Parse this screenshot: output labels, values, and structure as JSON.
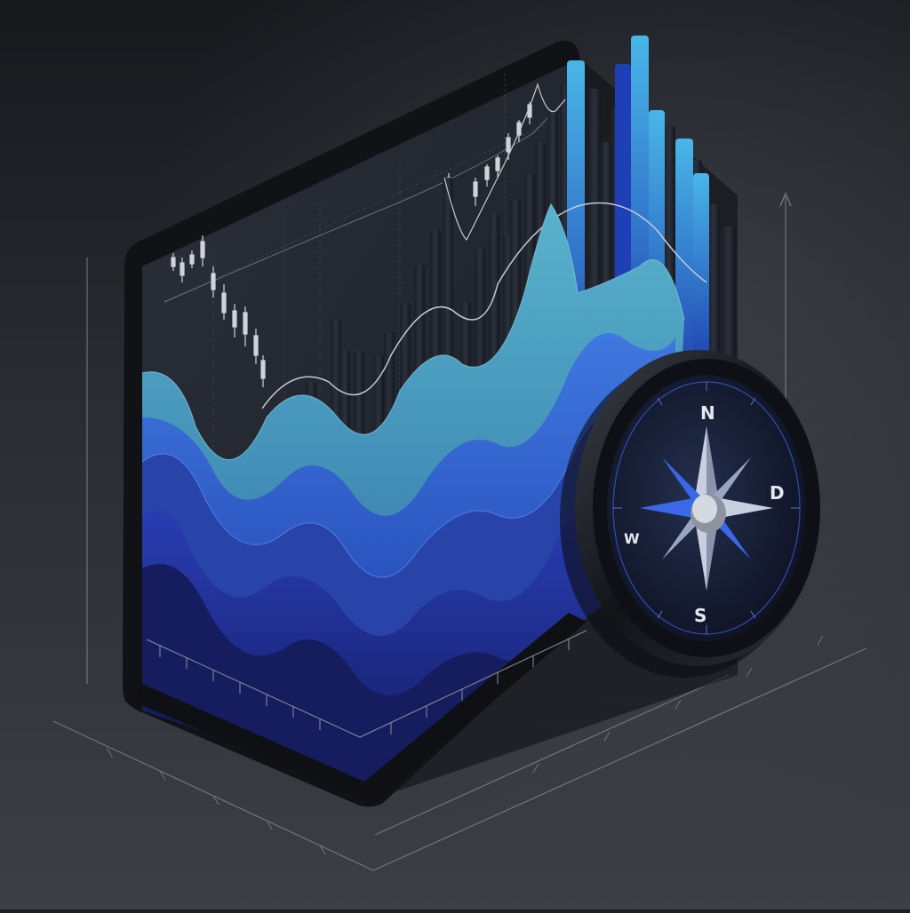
{
  "scene": {
    "description_kind": "3d-illustration",
    "colors": {
      "background_top": "#1e2025",
      "background_bottom": "#3a3d44",
      "panel": "#22262e",
      "panel_frame": "#121419",
      "accent_blue": "#2a52d6",
      "accent_cyan": "#3aa0d8",
      "accent_teal": "#4a9fb4",
      "navy": "#1a2470",
      "compass_face": "#161a2c"
    },
    "compass": {
      "cardinals": {
        "north": "N",
        "south": "S",
        "east": "D",
        "west": "W"
      }
    },
    "icons": [
      "compass-icon",
      "candlestick-chart-icon",
      "bar-chart-icon",
      "wave-area-chart-icon",
      "up-arrow-icon"
    ]
  }
}
